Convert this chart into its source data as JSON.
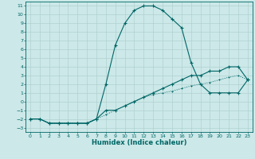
{
  "title": "",
  "xlabel": "Humidex (Indice chaleur)",
  "ylabel": "",
  "bg_color": "#cce8e8",
  "grid_color": "#aacccc",
  "line_color": "#006666",
  "xlim": [
    -0.5,
    23.5
  ],
  "ylim": [
    -3.5,
    11.5
  ],
  "xticks": [
    0,
    1,
    2,
    3,
    4,
    5,
    6,
    7,
    8,
    9,
    10,
    11,
    12,
    13,
    14,
    15,
    16,
    17,
    18,
    19,
    20,
    21,
    22,
    23
  ],
  "yticks": [
    -3,
    -2,
    -1,
    0,
    1,
    2,
    3,
    4,
    5,
    6,
    7,
    8,
    9,
    10,
    11
  ],
  "curve1_x": [
    0,
    1,
    2,
    3,
    4,
    5,
    6,
    7,
    8,
    9,
    10,
    11,
    12,
    13,
    14,
    15,
    16,
    17,
    18,
    19,
    20,
    21,
    22,
    23
  ],
  "curve1_y": [
    -2,
    -2,
    -2.5,
    -2.5,
    -2.5,
    -2.5,
    -2.5,
    -2,
    2,
    6.5,
    9,
    10.5,
    11,
    11,
    10.5,
    9.5,
    8.5,
    4.5,
    2,
    1,
    1,
    1,
    1,
    2.5
  ],
  "curve2_x": [
    0,
    1,
    2,
    3,
    4,
    5,
    6,
    7,
    8,
    9,
    10,
    11,
    12,
    13,
    14,
    15,
    16,
    17,
    18,
    19,
    20,
    21,
    22,
    23
  ],
  "curve2_y": [
    -2,
    -2,
    -2.5,
    -2.5,
    -2.5,
    -2.5,
    -2.5,
    -2,
    -1,
    -1,
    -0.5,
    0,
    0.5,
    1,
    1.5,
    2,
    2.5,
    3,
    3,
    3.5,
    3.5,
    4,
    4,
    2.5
  ],
  "curve3_x": [
    0,
    1,
    2,
    3,
    4,
    5,
    6,
    7,
    8,
    9,
    10,
    11,
    12,
    13,
    14,
    15,
    16,
    17,
    18,
    19,
    20,
    21,
    22,
    23
  ],
  "curve3_y": [
    -2,
    -2,
    -2.5,
    -2.5,
    -2.5,
    -2.5,
    -2.5,
    -2,
    -1.5,
    -1,
    -0.5,
    0,
    0.5,
    0.8,
    1,
    1.2,
    1.5,
    1.8,
    2,
    2.2,
    2.5,
    2.8,
    3,
    2.5
  ],
  "xlabel_fontsize": 6,
  "tick_fontsize": 4.5,
  "lw1": 0.8,
  "lw2": 0.8,
  "lw3": 0.7,
  "ms": 2.5
}
